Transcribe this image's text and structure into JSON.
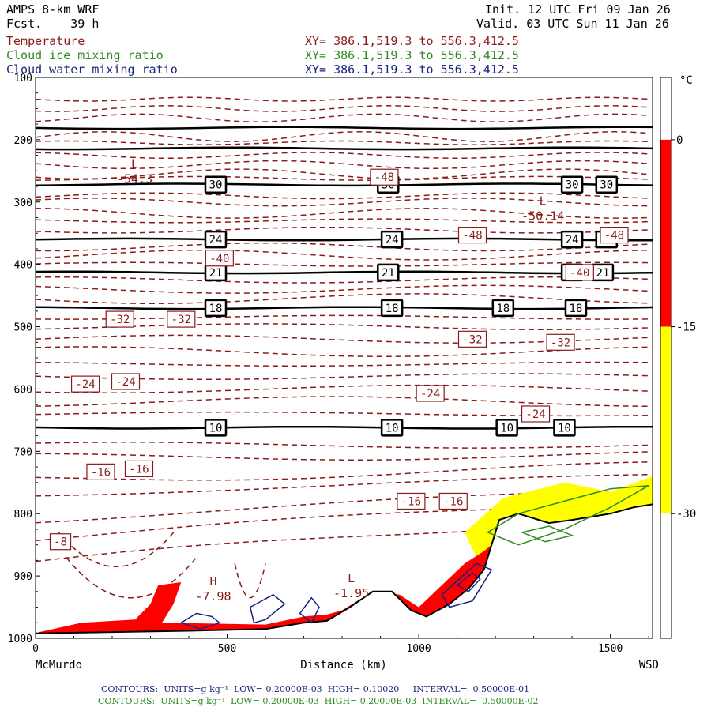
{
  "header": {
    "model": "AMPS 8-km WRF",
    "fcst_label": "Fcst.",
    "fcst_value": "39 h",
    "init": "Init. 12 UTC Fri 09 Jan 26",
    "valid": "Valid. 03 UTC Sun 11 Jan 26",
    "fields": [
      {
        "name": "Temperature",
        "xy": "XY= 386.1,519.3 to 556.3,412.5",
        "color": "#8b1a1a"
      },
      {
        "name": "Cloud ice mixing ratio",
        "xy": "XY= 386.1,519.3 to 556.3,412.5",
        "color": "#2e8b1e"
      },
      {
        "name": "Cloud water mixing ratio",
        "xy": "XY= 386.1,519.3 to 556.3,412.5",
        "color": "#1a237e"
      }
    ]
  },
  "footer": {
    "line1": "CONTOURS:  UNITS=g kg⁻¹  LOW= 0.20000E-03  HIGH= 0.10020     INTERVAL=  0.50000E-01",
    "line2": "CONTOURS:  UNITS=g kg⁻¹  LOW= 0.20000E-03  HIGH= 0.20000E-03  INTERVAL=  0.50000E-02",
    "line1_color": "#1a237e",
    "line2_color": "#2e8b1e"
  },
  "chart_data": {
    "type": "cross-section",
    "xlabel": "Distance (km)",
    "x_left_label": "McMurdo",
    "x_right_label": "WSD",
    "xlim": [
      0,
      1610
    ],
    "x_ticks": [
      0,
      500,
      1000,
      1500
    ],
    "ylim": [
      100,
      1000
    ],
    "y_ticks": [
      100,
      200,
      300,
      400,
      500,
      600,
      700,
      800,
      900,
      1000
    ],
    "colorbar": {
      "unit": "°C",
      "ticks": [
        "0",
        "-15",
        "-30"
      ],
      "bands": [
        {
          "from": 0,
          "to": 5,
          "color": "#ffffff"
        },
        {
          "from": -15,
          "to": 0,
          "color": "#ff0000"
        },
        {
          "from": -30,
          "to": -15,
          "color": "#ffff00"
        },
        {
          "from": -40,
          "to": -30,
          "color": "#ffffff"
        }
      ]
    },
    "theta_lines": [
      {
        "p": 181,
        "label": null,
        "label_x": []
      },
      {
        "p": 214,
        "label": null,
        "label_x": []
      },
      {
        "p": 272,
        "label": "30",
        "label_x": [
          470,
          920,
          1400,
          1490
        ]
      },
      {
        "p": 360,
        "label": "24",
        "label_x": [
          470,
          930,
          1400,
          1490
        ]
      },
      {
        "p": 413,
        "label": "21",
        "label_x": [
          470,
          920,
          1400,
          1480
        ]
      },
      {
        "p": 470,
        "label": "18",
        "label_x": [
          470,
          930,
          1220,
          1410
        ]
      },
      {
        "p": 662,
        "label": "10",
        "label_x": [
          470,
          930,
          1230,
          1380
        ]
      }
    ],
    "temp_labels": [
      {
        "x": 910,
        "p": 260,
        "text": "-48"
      },
      {
        "x": 1140,
        "p": 353,
        "text": "-48"
      },
      {
        "x": 1510,
        "p": 353,
        "text": "-48"
      },
      {
        "x": 480,
        "p": 390,
        "text": "-40"
      },
      {
        "x": 1420,
        "p": 413,
        "text": "-40"
      },
      {
        "x": 220,
        "p": 488,
        "text": "-32"
      },
      {
        "x": 380,
        "p": 488,
        "text": "-32"
      },
      {
        "x": 1140,
        "p": 520,
        "text": "-32"
      },
      {
        "x": 1370,
        "p": 525,
        "text": "-32"
      },
      {
        "x": 130,
        "p": 592,
        "text": "-24"
      },
      {
        "x": 235,
        "p": 588,
        "text": "-24"
      },
      {
        "x": 1030,
        "p": 607,
        "text": "-24"
      },
      {
        "x": 1305,
        "p": 640,
        "text": "-24"
      },
      {
        "x": 170,
        "p": 733,
        "text": "-16"
      },
      {
        "x": 270,
        "p": 728,
        "text": "-16"
      },
      {
        "x": 980,
        "p": 780,
        "text": "-16"
      },
      {
        "x": 1090,
        "p": 780,
        "text": "-16"
      },
      {
        "x": 65,
        "p": 845,
        "text": "-8"
      }
    ],
    "temp_levels": [
      -8,
      -16,
      -24,
      -32,
      -40,
      -48
    ],
    "extrema": [
      {
        "type": "L",
        "x": 265,
        "p": 255,
        "value": "-54.3"
      },
      {
        "type": "L",
        "x": 1330,
        "p": 315,
        "value": "-50.14"
      },
      {
        "type": "H",
        "x": 470,
        "p": 925,
        "value": "-7.98"
      },
      {
        "type": "L",
        "x": 830,
        "p": 920,
        "value": "-1.95"
      }
    ]
  }
}
